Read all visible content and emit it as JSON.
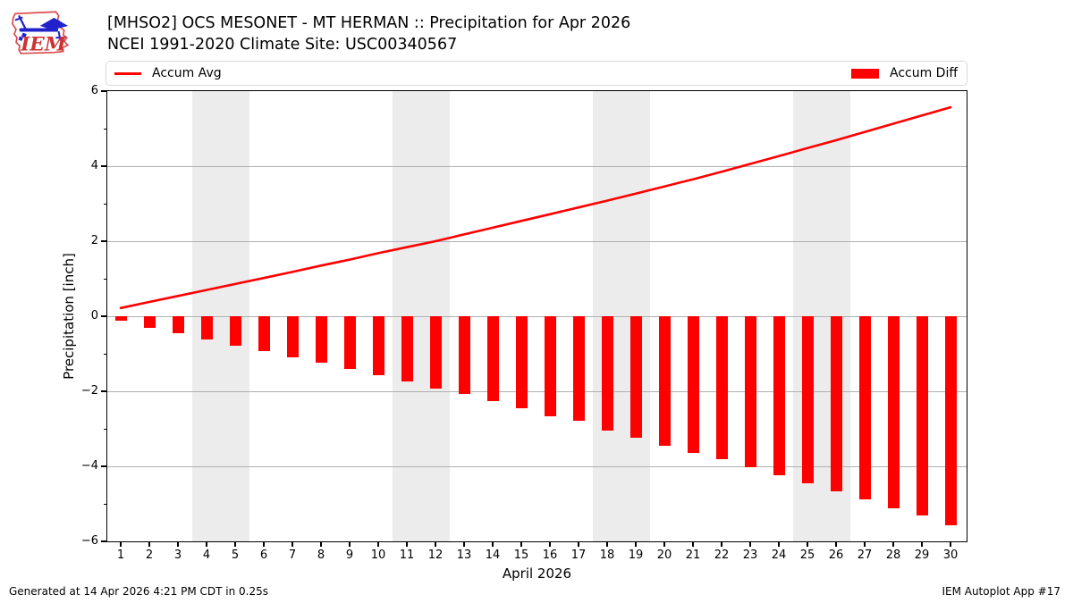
{
  "header": {
    "logo_text": "IEM",
    "title": "[MHSO2] OCS MESONET - MT HERMAN :: Precipitation for Apr 2026",
    "subtitle": "NCEI 1991-2020 Climate Site: USC00340567"
  },
  "legend": {
    "avg_label": "Accum Avg",
    "diff_label": "Accum Diff"
  },
  "footer": {
    "left": "Generated at 14 Apr 2026 4:21 PM CDT in 0.25s",
    "right": "IEM Autoplot App #17"
  },
  "colors": {
    "series_red": "#ff0000",
    "weekend_band": "#ececec",
    "gridline": "#b0b0b0",
    "spine": "#000000",
    "legend_border": "#d9d9d9",
    "logo_red": "#cc3333",
    "logo_blue": "#2222cc"
  },
  "chart_data": {
    "type": "line+bar",
    "title": "[MHSO2] OCS MESONET - MT HERMAN :: Precipitation for Apr 2026",
    "subtitle": "NCEI 1991-2020 Climate Site: USC00340567",
    "xlabel": "April 2026",
    "ylabel": "Precipitation [inch]",
    "ylim": [
      -6,
      6
    ],
    "x": [
      1,
      2,
      3,
      4,
      5,
      6,
      7,
      8,
      9,
      10,
      11,
      12,
      13,
      14,
      15,
      16,
      17,
      18,
      19,
      20,
      21,
      22,
      23,
      24,
      25,
      26,
      27,
      28,
      29,
      30
    ],
    "xtick_labels": [
      "1",
      "2",
      "3",
      "4",
      "5",
      "6",
      "7",
      "8",
      "9",
      "10",
      "11",
      "12",
      "13",
      "14",
      "15",
      "16",
      "17",
      "18",
      "19",
      "20",
      "21",
      "22",
      "23",
      "24",
      "25",
      "26",
      "27",
      "28",
      "29",
      "30"
    ],
    "ytick_major": [
      6,
      4,
      2,
      0,
      -2,
      -4,
      -6
    ],
    "ytick_major_labels": [
      "6",
      "4",
      "2",
      "0",
      "−2",
      "−4",
      "−6"
    ],
    "ytick_minor": [
      5,
      3,
      1,
      -1,
      -3,
      -5
    ],
    "gridlines": [
      4,
      2,
      0,
      -2,
      -4
    ],
    "grid": "horizontal major gridlines only",
    "legend_position": "full-width box above plot, Accum Avg left / Accum Diff right",
    "weekend_bands": [
      [
        3.5,
        5.5
      ],
      [
        10.5,
        12.5
      ],
      [
        17.5,
        19.5
      ],
      [
        24.5,
        26.5
      ]
    ],
    "series": [
      {
        "name": "Accum Avg",
        "type": "line",
        "color": "#ff0000",
        "values": [
          0.22,
          0.38,
          0.54,
          0.7,
          0.86,
          1.02,
          1.18,
          1.35,
          1.51,
          1.68,
          1.84,
          2.0,
          2.18,
          2.36,
          2.54,
          2.72,
          2.9,
          3.08,
          3.27,
          3.46,
          3.65,
          3.85,
          4.06,
          4.27,
          4.48,
          4.69,
          4.91,
          5.13,
          5.35,
          5.57
        ]
      },
      {
        "name": "Accum Diff",
        "type": "bar",
        "color": "#ff0000",
        "values": [
          -0.13,
          -0.31,
          -0.46,
          -0.63,
          -0.78,
          -0.93,
          -1.1,
          -1.24,
          -1.41,
          -1.56,
          -1.74,
          -1.92,
          -2.06,
          -2.25,
          -2.45,
          -2.66,
          -2.79,
          -3.04,
          -3.24,
          -3.46,
          -3.64,
          -3.82,
          -4.02,
          -4.23,
          -4.45,
          -4.67,
          -4.89,
          -5.12,
          -5.32,
          -5.56
        ]
      }
    ]
  }
}
